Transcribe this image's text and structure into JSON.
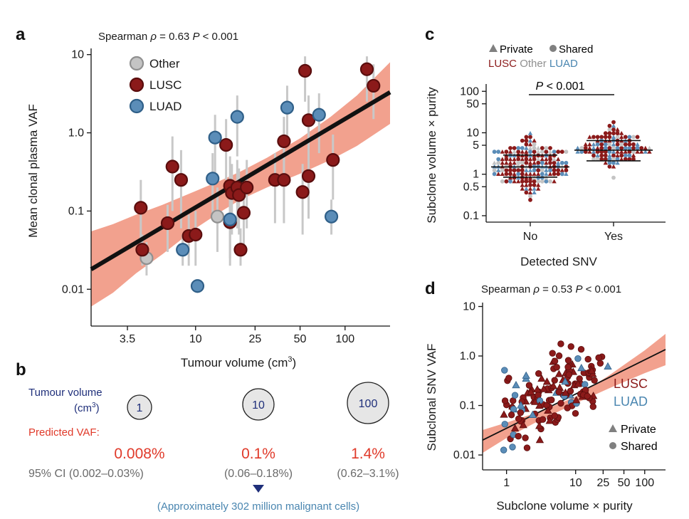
{
  "colors": {
    "lusc": "#8b1a1a",
    "lusc_stroke": "#5a0d0d",
    "luad": "#5b8db8",
    "luad_stroke": "#2f5f88",
    "other": "#c4c4c4",
    "other_stroke": "#909090",
    "band": "#f0907a",
    "err": "#c8c8c8",
    "blue_text": "#1f2f7a",
    "red_text": "#e03a2a",
    "gray_text": "#6a6a6a",
    "teal_text": "#4a86b0"
  },
  "panel_labels": {
    "a": "a",
    "b": "b",
    "c": "c",
    "d": "d"
  },
  "chart_data": [
    {
      "panel": "a",
      "type": "scatter",
      "stat_prefix": "Spearman ",
      "stat_rho": "ρ",
      "stat_value": " = 0.63 ",
      "stat_p": "P",
      "stat_p_value": " < 0.001",
      "xlabel": "Tumour volume (cm",
      "xlabel_sup": "3",
      "xlabel_end": ")",
      "ylabel": "Mean clonal plasma VAF",
      "xscale": "log",
      "yscale": "log",
      "xlim": [
        2.0,
        200
      ],
      "ylim": [
        0.004,
        12
      ],
      "xticks": [
        3.5,
        10,
        25,
        50,
        100
      ],
      "xtick_labels": [
        "3.5",
        "10",
        "25",
        "50",
        "100"
      ],
      "yticks": [
        0.01,
        0.1,
        1.0,
        10
      ],
      "ytick_labels": [
        "0.01",
        "0.1",
        "1.0",
        "10"
      ],
      "legend": [
        "Other",
        "LUSC",
        "LUAD"
      ],
      "legend_position": "top-left",
      "fit": {
        "x": [
          2.0,
          200
        ],
        "y": [
          0.018,
          3.3
        ]
      },
      "band": {
        "x": [
          2.0,
          2.8,
          4,
          6,
          10,
          15,
          20,
          30,
          50,
          80,
          120,
          200
        ],
        "lower": [
          0.006,
          0.009,
          0.016,
          0.028,
          0.06,
          0.1,
          0.14,
          0.2,
          0.3,
          0.45,
          0.68,
          1.3
        ],
        "upper": [
          0.055,
          0.068,
          0.09,
          0.12,
          0.18,
          0.25,
          0.32,
          0.48,
          0.85,
          1.6,
          3.0,
          8.0
        ]
      },
      "series": [
        {
          "name": "Other",
          "points": [
            {
              "x": 4.7,
              "y": 0.025,
              "lo": 0.015,
              "hi": 0.04
            },
            {
              "x": 14,
              "y": 0.085,
              "lo": 0.03,
              "hi": 0.2
            }
          ]
        },
        {
          "name": "LUSC",
          "points": [
            {
              "x": 4.3,
              "y": 0.11,
              "lo": 0.03,
              "hi": 0.25
            },
            {
              "x": 4.4,
              "y": 0.032,
              "lo": 0.02,
              "hi": 0.05
            },
            {
              "x": 6.5,
              "y": 0.07,
              "lo": 0.03,
              "hi": 0.12
            },
            {
              "x": 7.0,
              "y": 0.37,
              "lo": 0.1,
              "hi": 0.9
            },
            {
              "x": 8.0,
              "y": 0.25,
              "lo": 0.06,
              "hi": 0.6
            },
            {
              "x": 9.0,
              "y": 0.048,
              "lo": 0.02,
              "hi": 0.09
            },
            {
              "x": 10.0,
              "y": 0.05,
              "lo": 0.02,
              "hi": 0.1
            },
            {
              "x": 16,
              "y": 0.7,
              "lo": 0.25,
              "hi": 1.5
            },
            {
              "x": 17,
              "y": 0.21,
              "lo": 0.06,
              "hi": 0.5
            },
            {
              "x": 17.5,
              "y": 0.17,
              "lo": 0.05,
              "hi": 0.4
            },
            {
              "x": 17.0,
              "y": 0.072,
              "lo": 0.02,
              "hi": 0.14
            },
            {
              "x": 19,
              "y": 0.2,
              "lo": 0.06,
              "hi": 0.45
            },
            {
              "x": 19.5,
              "y": 0.16,
              "lo": 0.05,
              "hi": 0.35
            },
            {
              "x": 20,
              "y": 0.032,
              "lo": 0.02,
              "hi": 0.06
            },
            {
              "x": 21,
              "y": 0.095,
              "lo": 0.03,
              "hi": 0.2
            },
            {
              "x": 22,
              "y": 0.2,
              "lo": 0.06,
              "hi": 0.45
            },
            {
              "x": 34,
              "y": 0.25,
              "lo": 0.07,
              "hi": 0.55
            },
            {
              "x": 39,
              "y": 0.78,
              "lo": 0.25,
              "hi": 1.6
            },
            {
              "x": 39,
              "y": 0.25,
              "lo": 0.07,
              "hi": 0.55
            },
            {
              "x": 52,
              "y": 0.175,
              "lo": 0.05,
              "hi": 0.4
            },
            {
              "x": 54,
              "y": 6.2,
              "lo": 2.5,
              "hi": 9.5
            },
            {
              "x": 57,
              "y": 1.45,
              "lo": 0.45,
              "hi": 3.0
            },
            {
              "x": 57,
              "y": 0.28,
              "lo": 0.08,
              "hi": 0.6
            },
            {
              "x": 83,
              "y": 0.45,
              "lo": 0.14,
              "hi": 0.95
            },
            {
              "x": 140,
              "y": 6.5,
              "lo": 2.5,
              "hi": 9.5
            },
            {
              "x": 155,
              "y": 4.0,
              "lo": 1.5,
              "hi": 7.5
            }
          ]
        },
        {
          "name": "LUAD",
          "points": [
            {
              "x": 8.2,
              "y": 0.032,
              "lo": 0.02,
              "hi": 0.05
            },
            {
              "x": 10.3,
              "y": 0.011,
              "lo": 0.009,
              "hi": 0.013
            },
            {
              "x": 13,
              "y": 0.26,
              "lo": 0.08,
              "hi": 0.55
            },
            {
              "x": 13.5,
              "y": 0.87,
              "lo": 0.3,
              "hi": 1.7
            },
            {
              "x": 17,
              "y": 0.078,
              "lo": 0.025,
              "hi": 0.16
            },
            {
              "x": 19,
              "y": 1.6,
              "lo": 0.5,
              "hi": 3.0
            },
            {
              "x": 41,
              "y": 2.1,
              "lo": 0.7,
              "hi": 4.0
            },
            {
              "x": 67,
              "y": 1.7,
              "lo": 0.55,
              "hi": 3.2
            },
            {
              "x": 81,
              "y": 0.085,
              "lo": 0.05,
              "hi": 0.14
            }
          ]
        }
      ]
    },
    {
      "panel": "b",
      "type": "table",
      "row_label_1a": "Tumour volume",
      "row_label_1b_pre": "(cm",
      "row_label_1b_sup": "3",
      "row_label_1b_post": ")",
      "row_label_2": "Predicted VAF:",
      "volumes": [
        1,
        10,
        100
      ],
      "predicted": [
        "0.008%",
        "0.1%",
        "1.4%"
      ],
      "ci": [
        "95% CI (0.002–0.03%)",
        "(0.06–0.18%)",
        "(0.62–3.1%)"
      ],
      "note": "(Approximately 302 million malignant cells)"
    },
    {
      "panel": "c",
      "type": "scatter",
      "legend_line1_private": "Private",
      "legend_line1_shared": "Shared",
      "legend_line2": [
        "LUSC",
        "Other",
        "LUAD"
      ],
      "p_label": "P",
      "p_value": " < 0.001",
      "xlabel": "Detected SNV",
      "ylabel": "Subclone volume × purity",
      "categories": [
        "No",
        "Yes"
      ],
      "yscale": "log",
      "ylim": [
        0.07,
        150
      ],
      "yticks": [
        0.1,
        0.5,
        1,
        5,
        10,
        50,
        100
      ],
      "ytick_labels": [
        "0.1",
        "0.5",
        "1",
        "5",
        "10",
        "50",
        "100"
      ],
      "groups": [
        {
          "category": "No",
          "n": 215,
          "log10_center": 0.18,
          "log10_spread": 0.45,
          "median": 1.5,
          "q1": 0.85,
          "q3": 2.9
        },
        {
          "category": "Yes",
          "n": 120,
          "log10_center": 0.6,
          "log10_spread": 0.33,
          "median": 3.8,
          "q1": 2.1,
          "q3": 6.5
        }
      ]
    },
    {
      "panel": "d",
      "type": "scatter",
      "stat_prefix": "Spearman ",
      "stat_rho": "ρ",
      "stat_value": " = 0.53 ",
      "stat_p": "P",
      "stat_p_value": " < 0.001",
      "xlabel": "Subclone volume × purity",
      "ylabel": "Subclonal SNV VAF",
      "xscale": "log",
      "yscale": "log",
      "xlim": [
        0.45,
        200
      ],
      "ylim": [
        0.005,
        12
      ],
      "xticks": [
        1,
        10,
        25,
        50,
        100
      ],
      "xtick_labels": [
        "1",
        "10",
        "25",
        "50",
        "100"
      ],
      "yticks": [
        0.01,
        0.1,
        1.0,
        10
      ],
      "ytick_labels": [
        "0.01",
        "0.1",
        "1.0",
        "10"
      ],
      "legend_types": [
        "LUSC",
        "LUAD"
      ],
      "legend_shapes": [
        "Private",
        "Shared"
      ],
      "legend_position": "right",
      "fit": {
        "x": [
          0.45,
          200
        ],
        "y": [
          0.02,
          1.35
        ]
      },
      "band": {
        "x": [
          0.45,
          1,
          3,
          10,
          30,
          100,
          200
        ],
        "lower": [
          0.011,
          0.022,
          0.05,
          0.11,
          0.22,
          0.45,
          0.65
        ],
        "upper": [
          0.032,
          0.045,
          0.075,
          0.15,
          0.4,
          1.3,
          2.8
        ]
      },
      "n_points": 150
    }
  ]
}
